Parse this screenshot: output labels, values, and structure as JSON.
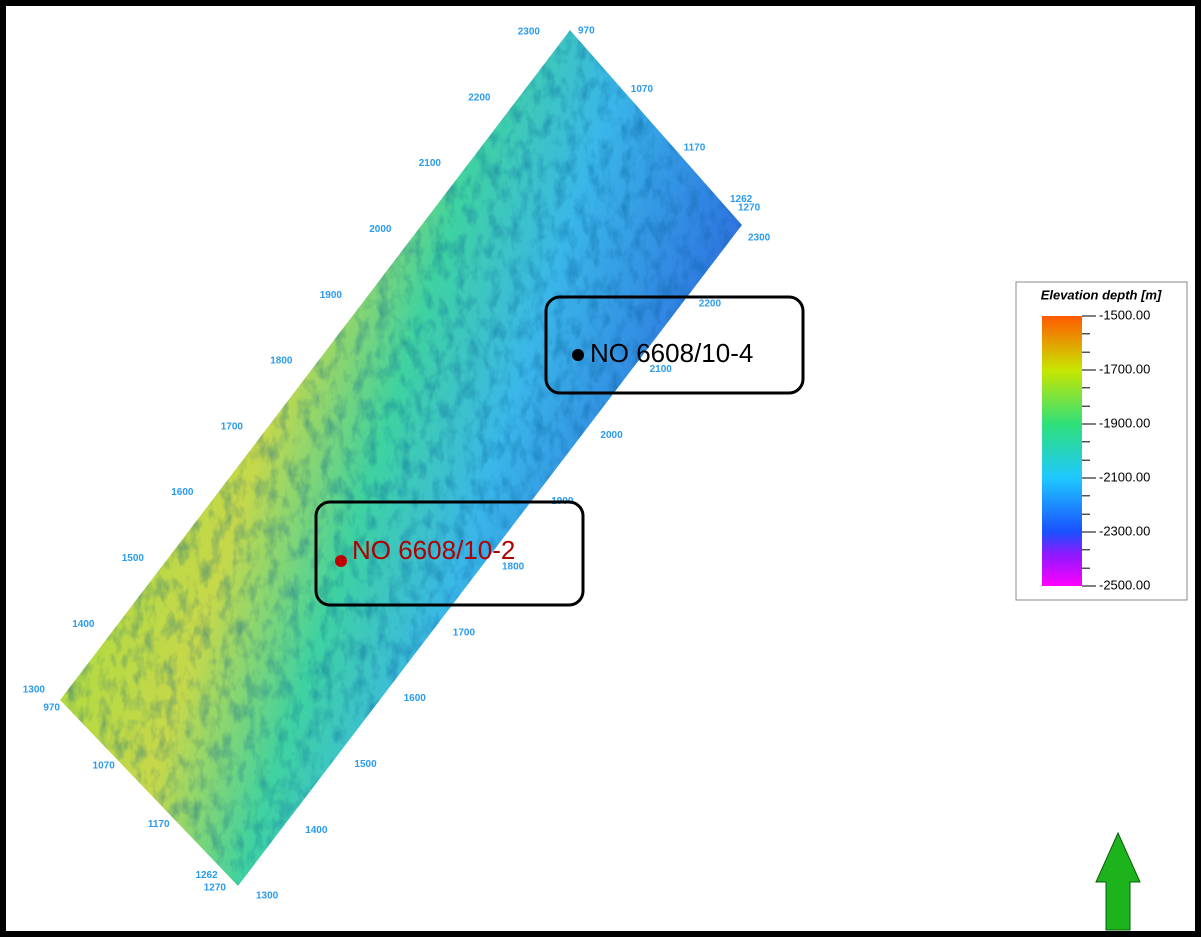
{
  "map": {
    "inline_labels_left": [
      "2300",
      "2200",
      "2100",
      "2000",
      "1900",
      "1800",
      "1700",
      "1600",
      "1500",
      "1400",
      "1300"
    ],
    "inline_labels_right": [
      "2300",
      "2200",
      "2100",
      "2000",
      "1900",
      "1800",
      "1700",
      "1600",
      "1500",
      "1400",
      "1300"
    ],
    "crossline_labels_top": [
      "970",
      "1070",
      "1170",
      "1262",
      "1270"
    ],
    "crossline_labels_bottom": [
      "970",
      "1070",
      "1170",
      "1262",
      "1270"
    ]
  },
  "wells": [
    {
      "label": "NO 6608/10-4"
    },
    {
      "label": "NO 6608/10-2"
    }
  ],
  "legend": {
    "title": "Elevation depth [m]",
    "ticks": [
      "-1500.00",
      "-1700.00",
      "-1900.00",
      "-2100.00",
      "-2300.00",
      "-2500.00"
    ]
  }
}
